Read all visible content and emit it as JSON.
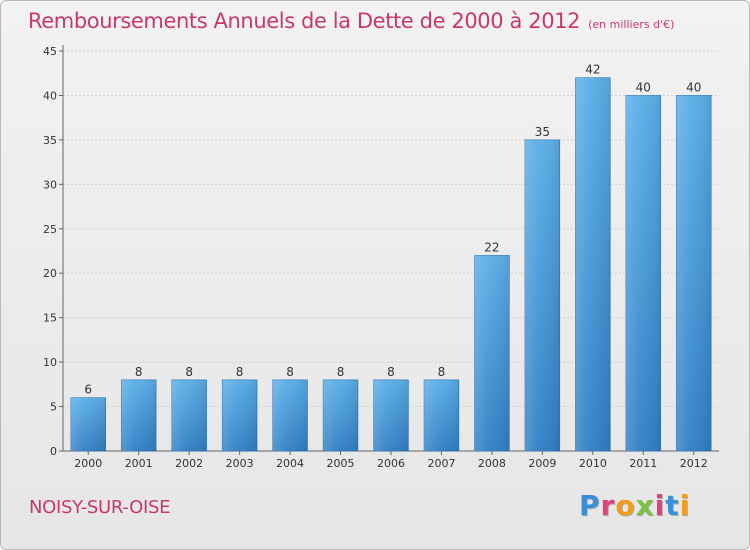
{
  "chart_data": {
    "type": "bar",
    "title": "Remboursements Annuels de la Dette de 2000 à 2012",
    "subtitle": "(en milliers d'€)",
    "categories": [
      "2000",
      "2001",
      "2002",
      "2003",
      "2004",
      "2005",
      "2006",
      "2007",
      "2008",
      "2009",
      "2010",
      "2011",
      "2012"
    ],
    "values": [
      6,
      8,
      8,
      8,
      8,
      8,
      8,
      8,
      22,
      35,
      42,
      40,
      40
    ],
    "ylim": [
      0,
      45
    ],
    "yticks": [
      0,
      5,
      10,
      15,
      20,
      25,
      30,
      35,
      40,
      45
    ],
    "grid": true,
    "bar_color": "#4d9fdc",
    "title_color": "#c8386e"
  },
  "footer": {
    "city": "NOISY-SUR-OISE"
  },
  "brand": {
    "logo_text": "Proxiti",
    "colors": [
      "#3b8ed8",
      "#e2407d",
      "#f39c1a",
      "#7dc142",
      "#e2407d",
      "#3b8ed8",
      "#f39c1a"
    ]
  }
}
